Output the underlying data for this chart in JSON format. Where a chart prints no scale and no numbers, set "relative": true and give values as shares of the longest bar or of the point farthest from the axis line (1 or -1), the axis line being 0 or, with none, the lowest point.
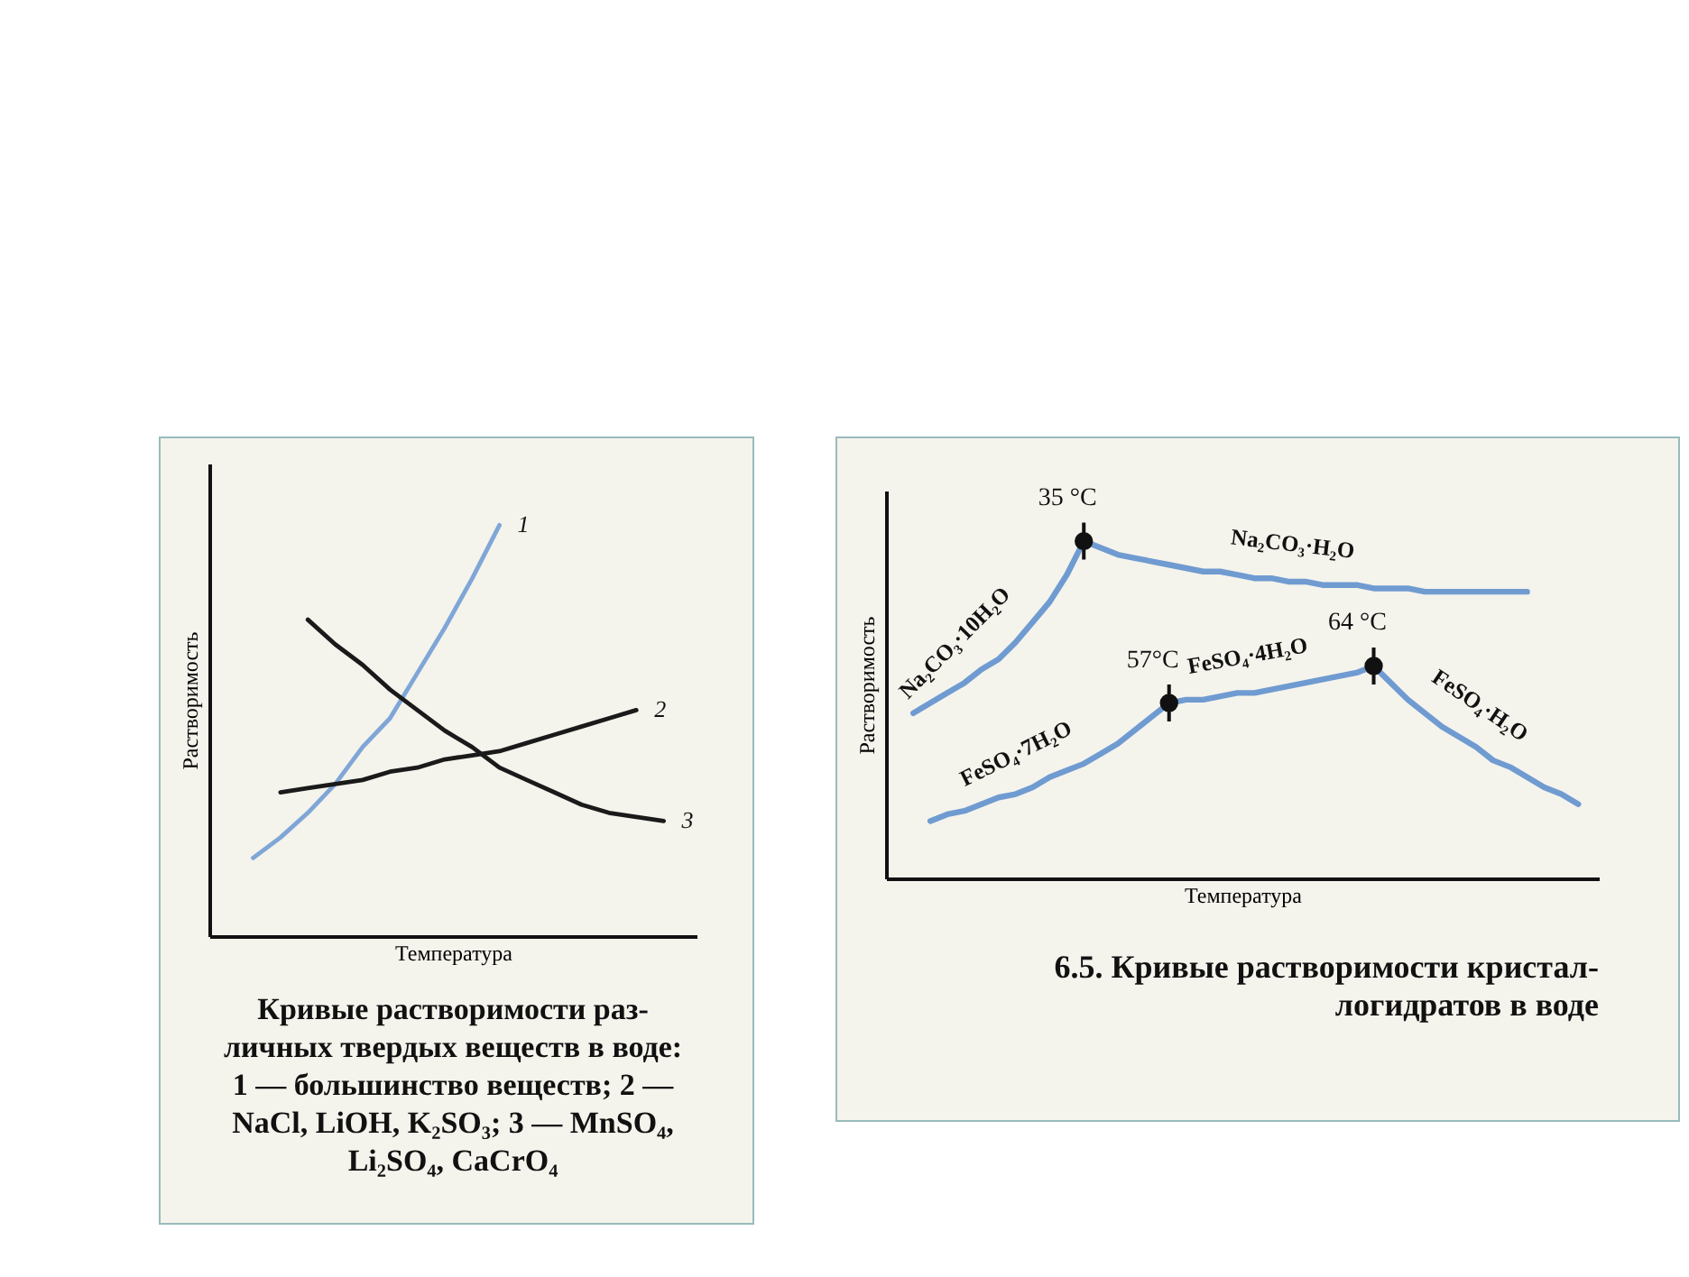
{
  "chart_data": [
    {
      "type": "line",
      "xlabel": "Температура",
      "ylabel": "Растворимость",
      "relative": true,
      "legend": false,
      "categories": [
        null,
        null,
        null,
        null,
        null,
        null,
        null,
        null,
        null,
        null,
        null,
        null,
        null,
        null,
        null,
        null
      ],
      "series": [
        {
          "name": "1",
          "color": "#7fa6d6",
          "values": [
            0.19,
            0.24,
            0.3,
            0.37,
            0.46,
            0.53,
            0.64,
            0.75,
            0.87,
            1,
            null,
            null,
            null,
            null,
            null,
            null
          ]
        },
        {
          "name": "2",
          "color": "#1a1a1a",
          "values": [
            null,
            0.35,
            0.36,
            0.37,
            0.38,
            0.4,
            0.41,
            0.43,
            0.44,
            0.45,
            0.47,
            0.49,
            0.51,
            0.53,
            0.55,
            null
          ]
        },
        {
          "name": "3",
          "color": "#1a1a1a",
          "values": [
            null,
            null,
            0.77,
            0.71,
            0.66,
            0.6,
            0.55,
            0.5,
            0.46,
            0.41,
            0.38,
            0.35,
            0.32,
            0.3,
            0.29,
            0.28
          ]
        }
      ],
      "annotations": [
        "Кривые растворимости раз-",
        "личных твердых веществ в воде:",
        "1 — большинство веществ; 2 —",
        "NaCl, LiOH, K₂SO₃; 3 — MnSO₄,",
        "Li₂SO₄, CaCrO₄"
      ]
    },
    {
      "type": "line",
      "xlabel": "Температура",
      "ylabel": "Растворимость",
      "relative": true,
      "legend": false,
      "categories": [
        null,
        null,
        null,
        null,
        null,
        null,
        null,
        null,
        null,
        null,
        null,
        null,
        null,
        null,
        null,
        null,
        null,
        null,
        null,
        null,
        null,
        null,
        null,
        null,
        null,
        null,
        null,
        null,
        null,
        null,
        null,
        null,
        null,
        null,
        null,
        null,
        null,
        null,
        null,
        null
      ],
      "series": [
        {
          "name": "Na₂CO₃·10H₂O",
          "color": "#6f9bd1",
          "values": [
            0.49,
            0.52,
            0.55,
            0.58,
            0.62,
            0.65,
            0.7,
            0.76,
            0.82,
            0.9,
            1,
            null,
            null,
            null,
            null,
            null,
            null,
            null,
            null,
            null,
            null,
            null,
            null,
            null,
            null,
            null,
            null,
            null,
            null,
            null,
            null,
            null,
            null,
            null,
            null,
            null,
            null,
            null,
            null,
            null
          ]
        },
        {
          "name": "Na₂CO₃·H₂O",
          "color": "#6f9bd1",
          "values": [
            null,
            null,
            null,
            null,
            null,
            null,
            null,
            null,
            null,
            null,
            1,
            0.98,
            0.96,
            0.95,
            0.94,
            0.93,
            0.92,
            0.91,
            0.91,
            0.9,
            0.89,
            0.89,
            0.88,
            0.88,
            0.87,
            0.87,
            0.87,
            0.86,
            0.86,
            0.86,
            0.85,
            0.85,
            0.85,
            0.85,
            0.85,
            0.85,
            0.85,
            null,
            null,
            null
          ]
        },
        {
          "name": "FeSO₄·7H₂O",
          "color": "#6f9bd1",
          "values": [
            null,
            0.17,
            0.19,
            0.2,
            0.22,
            0.24,
            0.25,
            0.27,
            0.3,
            0.32,
            0.34,
            0.37,
            0.4,
            0.44,
            0.48,
            0.52,
            null,
            null,
            null,
            null,
            null,
            null,
            null,
            null,
            null,
            null,
            null,
            null,
            null,
            null,
            null,
            null,
            null,
            null,
            null,
            null,
            null,
            null,
            null,
            null
          ]
        },
        {
          "name": "FeSO₄·4H₂O",
          "color": "#6f9bd1",
          "values": [
            null,
            null,
            null,
            null,
            null,
            null,
            null,
            null,
            null,
            null,
            null,
            null,
            null,
            null,
            null,
            0.52,
            0.53,
            0.53,
            0.54,
            0.55,
            0.55,
            0.56,
            0.57,
            0.58,
            0.59,
            0.6,
            0.61,
            0.63,
            null,
            null,
            null,
            null,
            null,
            null,
            null,
            null,
            null,
            null,
            null,
            null
          ]
        },
        {
          "name": "FeSO₄·H₂O",
          "color": "#6f9bd1",
          "values": [
            null,
            null,
            null,
            null,
            null,
            null,
            null,
            null,
            null,
            null,
            null,
            null,
            null,
            null,
            null,
            null,
            null,
            null,
            null,
            null,
            null,
            null,
            null,
            null,
            null,
            null,
            null,
            0.63,
            0.58,
            0.53,
            0.49,
            0.45,
            0.42,
            0.39,
            0.35,
            0.33,
            0.3,
            0.27,
            0.25,
            0.22
          ]
        }
      ],
      "annotations": [
        {
          "text": "35 °C",
          "y": 1
        },
        {
          "text": "57°C",
          "y": 0.52
        },
        {
          "text": "64 °C",
          "y": 0.63
        },
        "6.5. Кривые растворимости кристал-",
        "логидратов в воде"
      ]
    }
  ]
}
